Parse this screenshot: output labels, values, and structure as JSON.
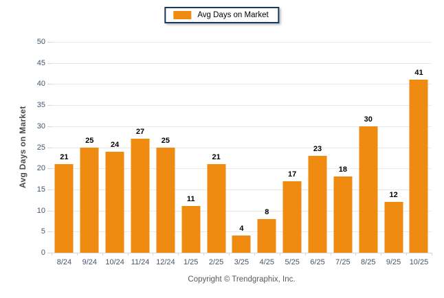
{
  "legend": {
    "label": "Avg Days on Market"
  },
  "chart_data": {
    "type": "bar",
    "title": "",
    "categories": [
      "8/24",
      "9/24",
      "10/24",
      "11/24",
      "12/24",
      "1/25",
      "2/25",
      "3/25",
      "4/25",
      "5/25",
      "6/25",
      "7/25",
      "8/25",
      "9/25",
      "10/25"
    ],
    "values": [
      21,
      25,
      24,
      27,
      25,
      11,
      21,
      4,
      8,
      17,
      23,
      18,
      30,
      12,
      41
    ],
    "xlabel": "",
    "ylabel": "Avg Days on Market",
    "ylim": [
      0,
      50
    ],
    "yticks": [
      0,
      5,
      10,
      15,
      20,
      25,
      30,
      35,
      40,
      45,
      50
    ],
    "grid": true,
    "legend_position": "top",
    "value_labels": true,
    "bar_color": "#EE8B10",
    "legend_border_color": "#17375E"
  },
  "footer": {
    "copyright": "Copyright © Trendgraphix, Inc."
  }
}
